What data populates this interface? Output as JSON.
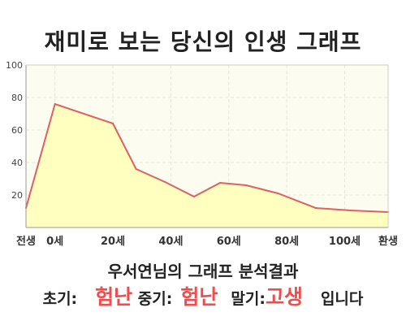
{
  "title": "재미로 보는 당신의 인생 그래프",
  "chart_data": {
    "type": "area",
    "x": [
      -10,
      0,
      20,
      28,
      38,
      48,
      57,
      66,
      77,
      90,
      102,
      115
    ],
    "y": [
      12,
      76,
      64,
      36,
      28,
      19,
      27.5,
      26,
      21,
      12,
      10.5,
      9.5
    ],
    "xlim": [
      -10,
      115
    ],
    "ylim": [
      0,
      100
    ],
    "y_ticks": [
      20,
      40,
      60,
      80,
      100
    ],
    "x_ticks": [
      {
        "x": -10,
        "label": "전생"
      },
      {
        "x": 0,
        "label": "0세"
      },
      {
        "x": 20,
        "label": "20세"
      },
      {
        "x": 40,
        "label": "40세"
      },
      {
        "x": 60,
        "label": "60세"
      },
      {
        "x": 80,
        "label": "80세"
      },
      {
        "x": 100,
        "label": "100세"
      },
      {
        "x": 115,
        "label": "환생"
      }
    ],
    "grid": true,
    "line_color": "#e06060",
    "fill_color": "#ffffc0",
    "plot_bg": "#fcfcf0"
  },
  "summary": {
    "line1": "우서연님의 그래프 분석결과",
    "early_label": "초기:",
    "early_value": "험난",
    "middle_label": "중기:",
    "middle_value": "험난",
    "late_label": "말기:",
    "late_value": "고생",
    "suffix": "입니다"
  },
  "colors": {
    "highlight": "#ee4d4d",
    "text": "#222222"
  }
}
